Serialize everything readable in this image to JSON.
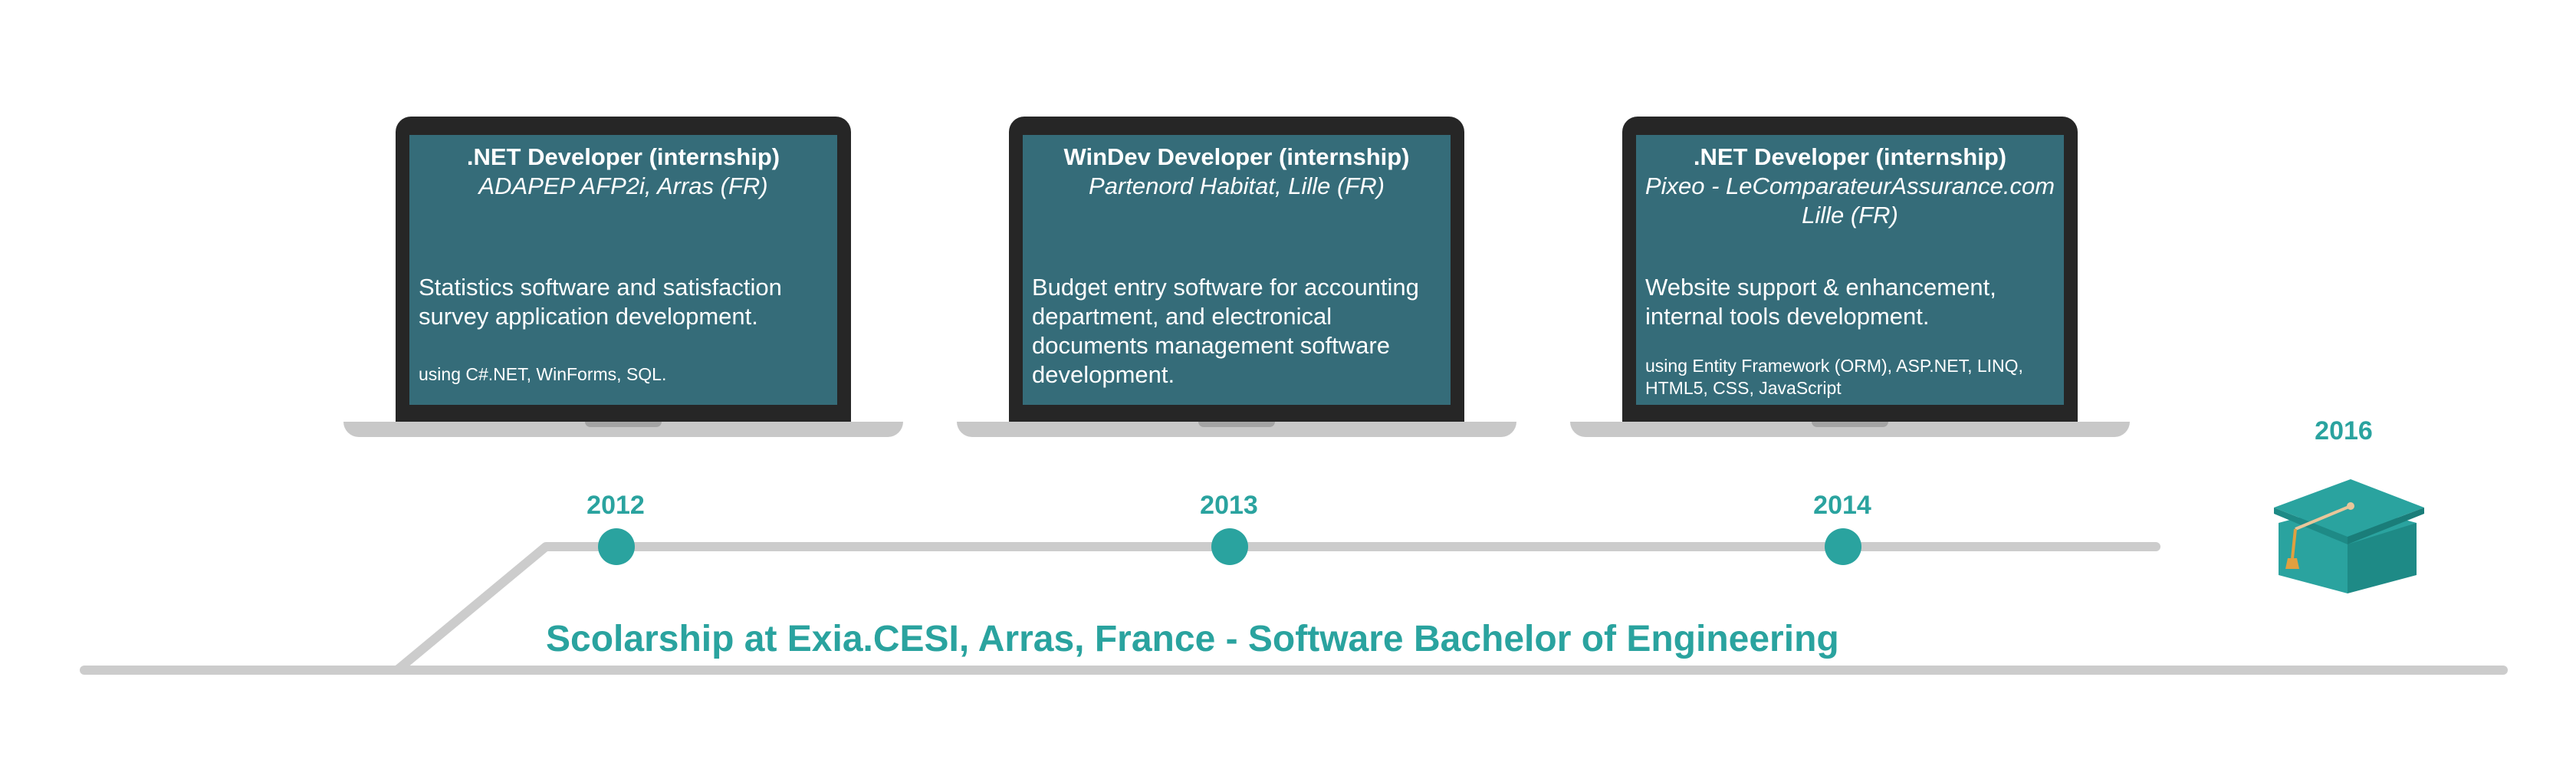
{
  "jobs": [
    {
      "title": ".NET Developer (internship)",
      "company": "ADAPEP AFP2i, Arras (FR)",
      "company_line2": "",
      "description": "Statistics software and satisfaction survey application development.",
      "tech": "using C#.NET, WinForms, SQL."
    },
    {
      "title": "WinDev Developer (internship)",
      "company": "Partenord Habitat, Lille (FR)",
      "company_line2": "",
      "description": "Budget entry software for accounting department, and electronical documents management software development.",
      "tech": ""
    },
    {
      "title": ".NET Developer (internship)",
      "company": "Pixeo - LeComparateurAssurance.com",
      "company_line2": "Lille (FR)",
      "description": "Website support & enhancement, internal tools development.",
      "tech": "using Entity Framework (ORM), ASP.NET, LINQ, HTML5, CSS, JavaScript"
    }
  ],
  "years": [
    "2012",
    "2013",
    "2014",
    "2016"
  ],
  "scolarship": "Scolarship at Exia.CESI, Arras, France - Software Bachelor of Engineering",
  "colors": {
    "accent": "#2aa39f",
    "screen": "#356c79",
    "line": "#cccccc",
    "laptop_frame": "#262626"
  },
  "icons": {
    "graduation": "graduation-cap-icon",
    "laptop": "laptop-icon"
  }
}
